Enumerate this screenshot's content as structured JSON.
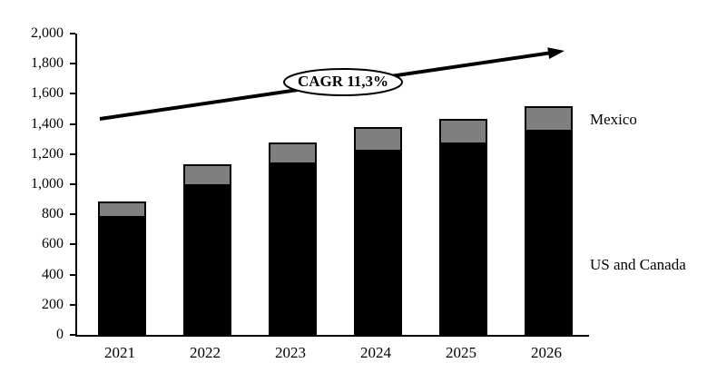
{
  "chart_data": {
    "type": "bar",
    "stacked": true,
    "title": "",
    "categories": [
      "2021",
      "2022",
      "2023",
      "2024",
      "2025",
      "2026"
    ],
    "series": [
      {
        "name": "US and Canada",
        "color": "#000000",
        "values": [
          780,
          985,
          1135,
          1215,
          1265,
          1350
        ]
      },
      {
        "name": "Mexico",
        "color": "#7f7f7f",
        "values": [
          110,
          145,
          145,
          160,
          170,
          170
        ]
      }
    ],
    "totals": [
      890,
      1130,
      1280,
      1375,
      1435,
      1520
    ],
    "ylim": [
      0,
      2000
    ],
    "ytick_step": 200,
    "ytick_labels": [
      "0",
      "200",
      "400",
      "600",
      "800",
      "1,000",
      "1,200",
      "1,400",
      "1,600",
      "1,800",
      "2,000"
    ],
    "grid": false,
    "legend_position": "right-of-plot",
    "annotation": {
      "label": "CAGR 11,3%",
      "shape": "ellipse",
      "arrow": "up-right-trend"
    }
  }
}
